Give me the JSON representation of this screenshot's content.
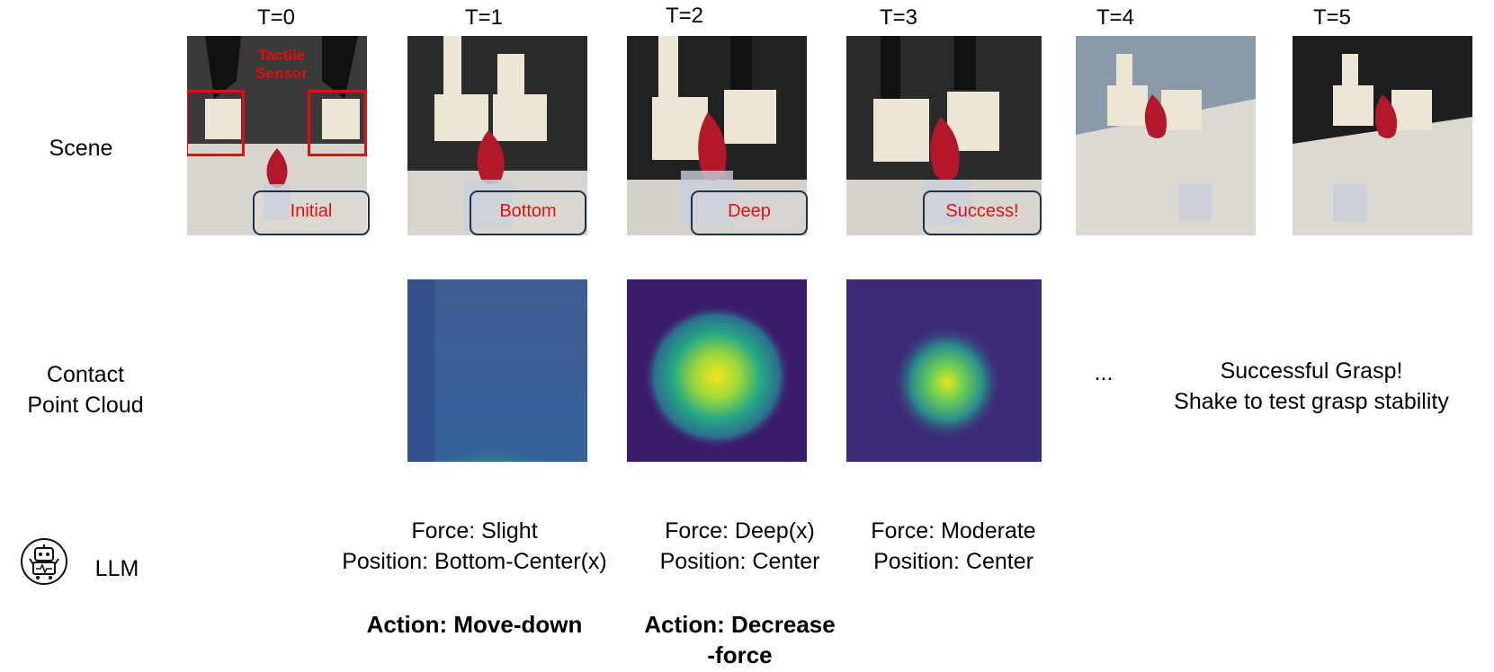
{
  "timesteps": [
    "T=0",
    "T=1",
    "T=2",
    "T=3",
    "T=4",
    "T=5"
  ],
  "rows": {
    "scene": "Scene",
    "contact_line1": "Contact",
    "contact_line2": "Point Cloud",
    "llm": "LLM"
  },
  "scene_tags": {
    "t0": "Initial",
    "t1": "Bottom",
    "t2": "Deep",
    "t3": "Success!"
  },
  "sensor_label_line1": "Tactile",
  "sensor_label_line2": "Sensor",
  "ellipsis": "...",
  "success_line1": "Successful Grasp!",
  "success_line2": "Shake to test grasp stability",
  "llm_outputs": [
    {
      "force": "Force: Slight",
      "position": "Position: Bottom-Center(x)",
      "action_line1": "Action: Move-down",
      "action_line2": ""
    },
    {
      "force": "Force: Deep(x)",
      "position": "Position: Center",
      "action_line1": "Action: Decrease",
      "action_line2": "-force"
    },
    {
      "force": "Force: Moderate",
      "position": "Position: Center",
      "action_line1": "",
      "action_line2": ""
    }
  ],
  "icons": {
    "llm": "robot-icon"
  },
  "colors": {
    "tag_text": "#e01010",
    "sensor_box": "#e01010",
    "heat_low": "#3d1b6b",
    "heat_high": "#f2e51d"
  }
}
